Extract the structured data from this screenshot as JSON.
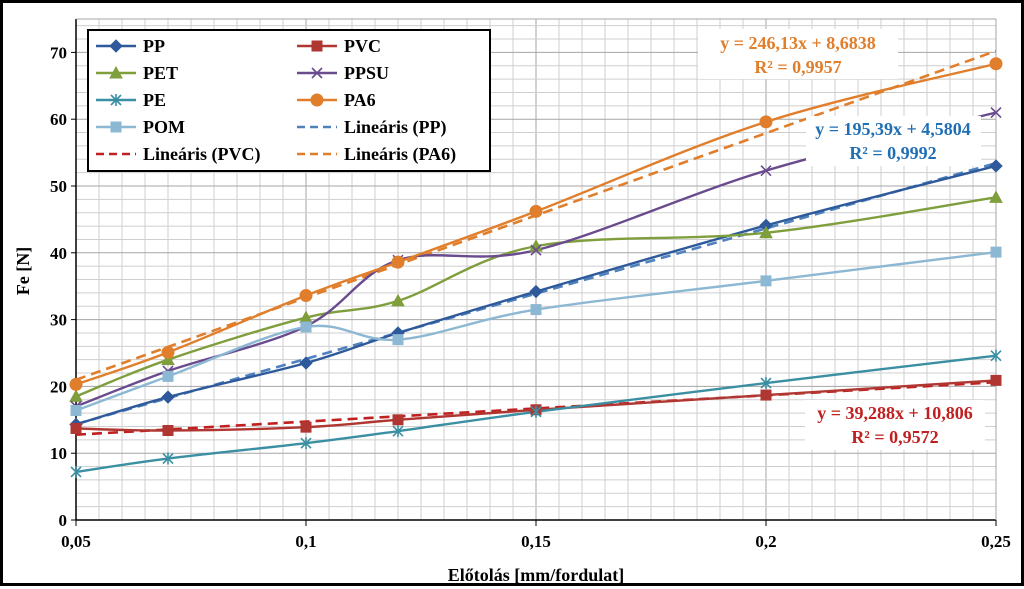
{
  "chart_data": {
    "type": "line",
    "title": "",
    "xlabel": "Előtolás [mm/fordulat]",
    "ylabel": "Fe [N]",
    "xlim": [
      0.05,
      0.25
    ],
    "ylim": [
      0,
      75
    ],
    "x_ticks": [
      0.05,
      0.1,
      0.15,
      0.2,
      0.25
    ],
    "x_tick_labels": [
      "0,05",
      "0,1",
      "0,15",
      "0,2",
      "0,25"
    ],
    "y_ticks": [
      0,
      10,
      20,
      30,
      40,
      50,
      60,
      70
    ],
    "y_tick_labels": [
      "0",
      "10",
      "20",
      "30",
      "40",
      "50",
      "60",
      "70"
    ],
    "x": [
      0.05,
      0.07,
      0.1,
      0.12,
      0.15,
      0.2,
      0.25
    ],
    "grid": true,
    "legend_position": "top-left",
    "series": [
      {
        "name": "PP",
        "color": "#2e5a9c",
        "marker": "diamond",
        "values": [
          14.3,
          18.4,
          23.5,
          28.0,
          34.2,
          44.1,
          53.0
        ]
      },
      {
        "name": "PVC",
        "color": "#b03632",
        "marker": "square",
        "values": [
          13.7,
          13.4,
          13.9,
          15.0,
          16.5,
          18.7,
          20.9
        ]
      },
      {
        "name": "PET",
        "color": "#7f9e3c",
        "marker": "triangle",
        "values": [
          18.5,
          24.0,
          30.3,
          32.8,
          41.0,
          43.0,
          48.3
        ]
      },
      {
        "name": "PPSU",
        "color": "#6a4b8e",
        "marker": "x",
        "values": [
          17.0,
          22.3,
          29.0,
          38.9,
          40.4,
          52.3,
          61.0
        ]
      },
      {
        "name": "PE",
        "color": "#3b8fa3",
        "marker": "asterisk",
        "values": [
          7.2,
          9.2,
          11.5,
          13.3,
          16.2,
          20.5,
          24.6
        ]
      },
      {
        "name": "PA6",
        "color": "#e07e2b",
        "marker": "circle",
        "values": [
          20.3,
          25.1,
          33.6,
          38.6,
          46.2,
          59.6,
          68.3
        ]
      },
      {
        "name": "POM",
        "color": "#8db8d3",
        "marker": "square",
        "values": [
          16.4,
          21.5,
          28.9,
          27.0,
          31.5,
          35.8,
          40.1
        ]
      }
    ],
    "trendlines": [
      {
        "name": "Lineáris (PP)",
        "color": "#4f81bd",
        "slope": 195.39,
        "intercept": 4.5804,
        "equation": "y = 195,39x + 4,5804",
        "r2": "R² = 0,9992"
      },
      {
        "name": "Lineáris (PVC)",
        "color": "#c0201f",
        "slope": 39.288,
        "intercept": 10.806,
        "equation": "y = 39,288x + 10,806",
        "r2": "R² = 0,9572"
      },
      {
        "name": "Lineáris (PA6)",
        "color": "#e07e2b",
        "slope": 246.13,
        "intercept": 8.6838,
        "equation": "y = 246,13x + 8,6838",
        "r2": "R² = 0,9957"
      }
    ],
    "equation_colors": {
      "PP": "#1f6fb5",
      "PVC": "#c0201f",
      "PA6": "#e07e2b"
    }
  }
}
